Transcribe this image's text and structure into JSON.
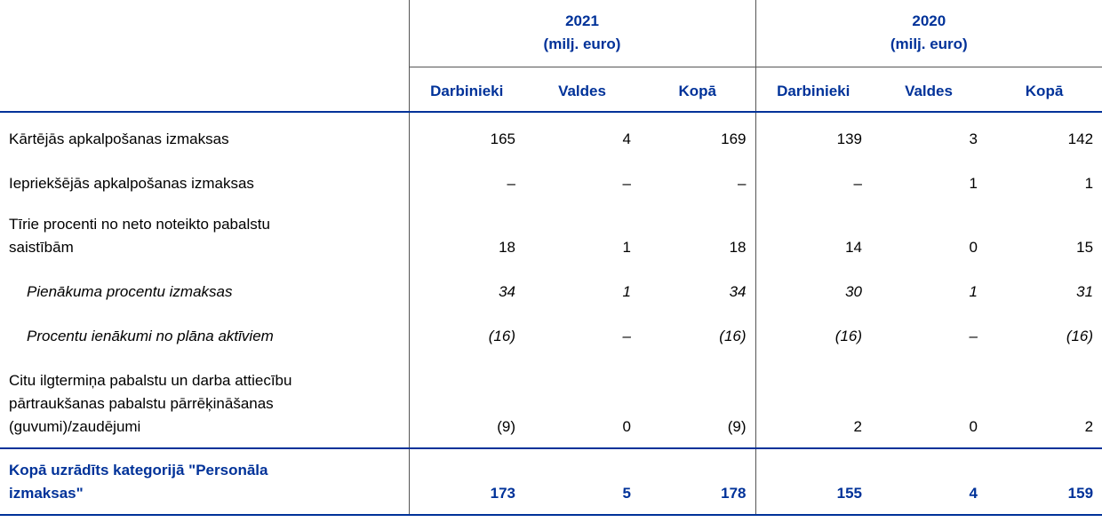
{
  "header": {
    "groups": [
      {
        "year": "2021",
        "unit": "(milj. euro)"
      },
      {
        "year": "2020",
        "unit": "(milj. euro)"
      }
    ],
    "columns": [
      "Darbinieki",
      "Valdes",
      "Kopā",
      "Darbinieki",
      "Valdes",
      "Kopā"
    ]
  },
  "table": {
    "rows": [
      {
        "style": "normal",
        "label": [
          "Kārtējās apkalpošanas izmaksas"
        ],
        "values": [
          "165",
          "4",
          "169",
          "139",
          "3",
          "142"
        ]
      },
      {
        "style": "normal",
        "label": [
          "Iepriekšējās apkalpošanas izmaksas"
        ],
        "values": [
          "–",
          "–",
          "–",
          "–",
          "1",
          "1"
        ]
      },
      {
        "style": "normal",
        "label": [
          "Tīrie procenti no neto noteikto pabalstu",
          "saistībām"
        ],
        "values": [
          "18",
          "1",
          "18",
          "14",
          "0",
          "15"
        ]
      },
      {
        "style": "italic",
        "label": [
          "Pienākuma procentu izmaksas"
        ],
        "values": [
          "34",
          "1",
          "34",
          "30",
          "1",
          "31"
        ]
      },
      {
        "style": "italic",
        "label": [
          "Procentu ienākumi no plāna aktīviem"
        ],
        "values": [
          "(16)",
          "–",
          "(16)",
          "(16)",
          "–",
          "(16)"
        ]
      },
      {
        "style": "normal",
        "label": [
          "Citu ilgtermiņa pabalstu un darba attiecību",
          "pārtraukšanas pabalstu pārrēķināšanas",
          "(guvumi)/zaudējumi"
        ],
        "values": [
          "(9)",
          "0",
          "(9)",
          "2",
          "0",
          "2"
        ]
      },
      {
        "style": "total",
        "label": [
          "Kopā uzrādīts kategorijā \"Personāla",
          "izmaksas\""
        ],
        "values": [
          "173",
          "5",
          "178",
          "155",
          "4",
          "159"
        ]
      }
    ]
  }
}
